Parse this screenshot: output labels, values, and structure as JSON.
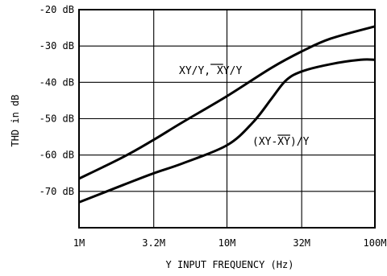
{
  "chart_data": {
    "type": "line",
    "xlabel": "Y INPUT FREQUENCY (Hz)",
    "ylabel": "THD in dB",
    "x_scale": "log",
    "xlim": [
      1000000,
      100000000
    ],
    "ylim": [
      -80,
      -20
    ],
    "x_ticks": [
      {
        "value": 1000000,
        "label": "1M"
      },
      {
        "value": 3200000,
        "label": "3.2M"
      },
      {
        "value": 10000000,
        "label": "10M"
      },
      {
        "value": 32000000,
        "label": "32M"
      },
      {
        "value": 100000000,
        "label": "100M"
      }
    ],
    "y_ticks": [
      {
        "value": -20,
        "label": "-20 dB"
      },
      {
        "value": -30,
        "label": "-30 dB"
      },
      {
        "value": -40,
        "label": "-40 dB"
      },
      {
        "value": -50,
        "label": "-50 dB"
      },
      {
        "value": -60,
        "label": "-60 dB"
      },
      {
        "value": -70,
        "label": "-70 dB"
      }
    ],
    "grid": true,
    "series": [
      {
        "x": [
          1000000,
          2000000,
          3200000,
          5000000,
          10000000,
          20000000,
          32000000,
          50000000,
          100000000
        ],
        "values": [
          -66.5,
          -60.5,
          -55.8,
          -51,
          -43.8,
          -36,
          -31.5,
          -28,
          -24.6
        ]
      },
      {
        "x": [
          1000000,
          2000000,
          3200000,
          5000000,
          10000000,
          15000000,
          20000000,
          25000000,
          32000000,
          50000000,
          80000000,
          100000000
        ],
        "values": [
          -73,
          -68.2,
          -65,
          -62.3,
          -57.3,
          -51,
          -44.5,
          -39.5,
          -37,
          -35,
          -33.8,
          -33.8
        ]
      }
    ],
    "annotations": [
      {
        "text": "XY/Y, XY/Y",
        "overline_range": [
          5,
          7
        ]
      },
      {
        "text": "(XY-XY)/Y",
        "overline_range": [
          4,
          6
        ]
      }
    ]
  }
}
